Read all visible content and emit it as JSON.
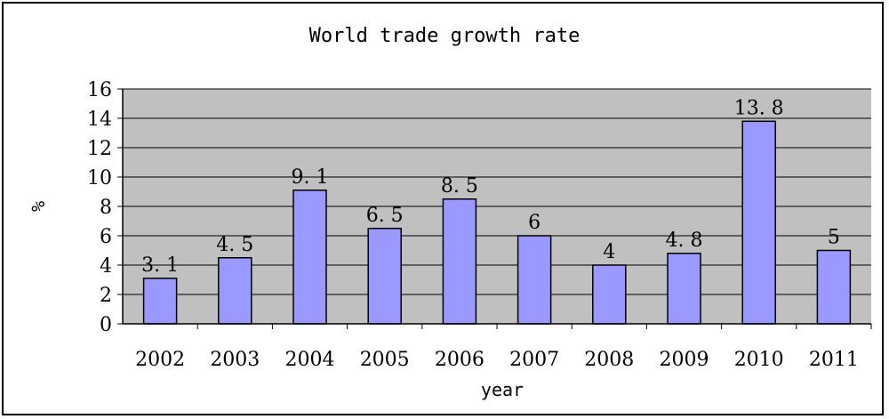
{
  "chart_data": {
    "type": "bar",
    "title": "World trade growth rate",
    "xlabel": "year",
    "ylabel": "%",
    "categories": [
      "2002",
      "2003",
      "2004",
      "2005",
      "2006",
      "2007",
      "2008",
      "2009",
      "2010",
      "2011"
    ],
    "values": [
      3.1,
      4.5,
      9.1,
      6.5,
      8.5,
      6,
      4,
      4.8,
      13.8,
      5
    ],
    "data_labels": [
      "3. 1",
      "4. 5",
      "9. 1",
      "6. 5",
      "8. 5",
      "6",
      "4",
      "4. 8",
      "13. 8",
      "5"
    ],
    "ylim": [
      0,
      16
    ],
    "yticks": [
      0,
      2,
      4,
      6,
      8,
      10,
      12,
      14,
      16
    ],
    "grid": true,
    "colors": {
      "bar": "#9999ff",
      "plot_background": "#c0c0c0",
      "bar_border": "#000000"
    }
  }
}
